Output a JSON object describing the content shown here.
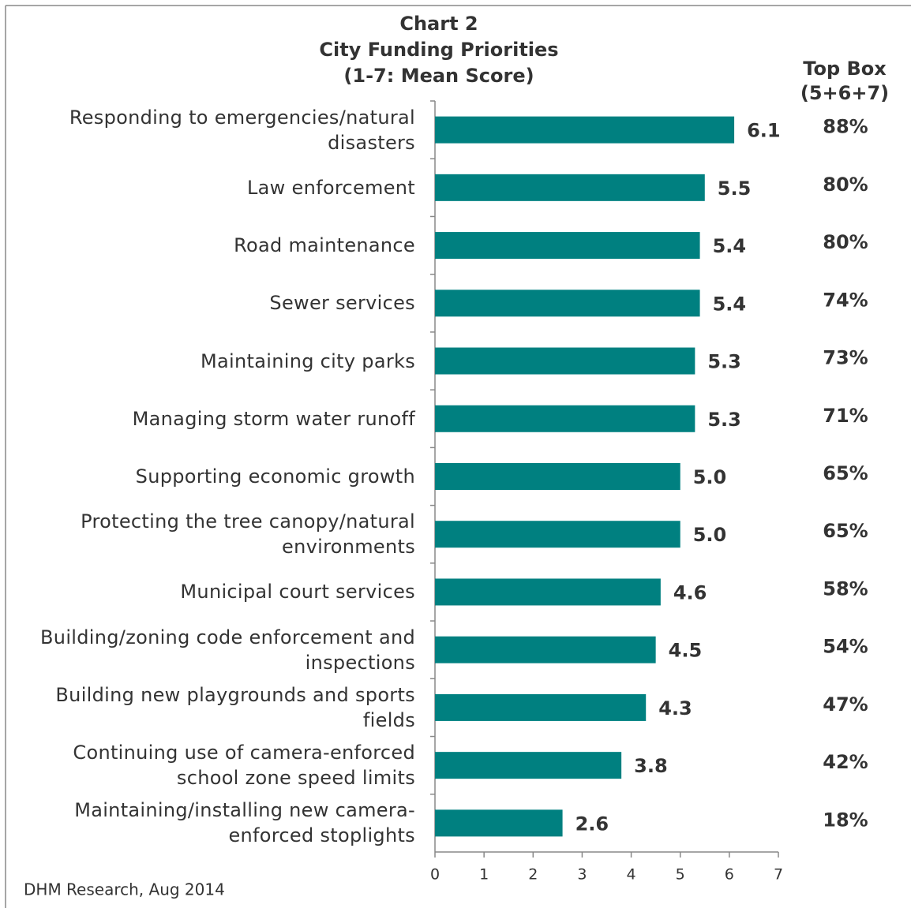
{
  "chart_data": {
    "type": "bar",
    "orientation": "horizontal",
    "title": [
      "Chart 2",
      "City Funding Priorities",
      "(1-7: Mean Score)"
    ],
    "categories": [
      "Responding to emergencies/natural disasters",
      "Law enforcement",
      "Road maintenance",
      "Sewer services",
      "Maintaining city parks",
      "Managing storm water runoff",
      "Supporting economic growth",
      "Protecting the tree canopy/natural environments",
      "Municipal court services",
      "Building/zoning code enforcement and inspections",
      "Building new playgrounds and sports fields",
      "Continuing use of camera-enforced school zone speed limits",
      "Maintaining/installing new camera-enforced stoplights"
    ],
    "values": [
      6.1,
      5.5,
      5.4,
      5.4,
      5.3,
      5.3,
      5.0,
      5.0,
      4.6,
      4.5,
      4.3,
      3.8,
      2.6
    ],
    "value_labels": [
      "6.1",
      "5.5",
      "5.4",
      "5.4",
      "5.3",
      "5.3",
      "5.0",
      "5.0",
      "4.6",
      "4.5",
      "4.3",
      "3.8",
      "2.6"
    ],
    "color": "#008080",
    "xlim": [
      0,
      7
    ],
    "xticks": [
      0,
      1,
      2,
      3,
      4,
      5,
      6,
      7
    ],
    "top_box": {
      "title": [
        "Top Box",
        "(5+6+7)"
      ],
      "values": [
        88,
        80,
        80,
        74,
        73,
        71,
        65,
        65,
        58,
        54,
        47,
        42,
        18
      ],
      "value_labels": [
        "88%",
        "80%",
        "80%",
        "74%",
        "73%",
        "71%",
        "65%",
        "65%",
        "58%",
        "54%",
        "47%",
        "42%",
        "18%"
      ]
    },
    "source": "DHM Research, Aug 2014"
  }
}
